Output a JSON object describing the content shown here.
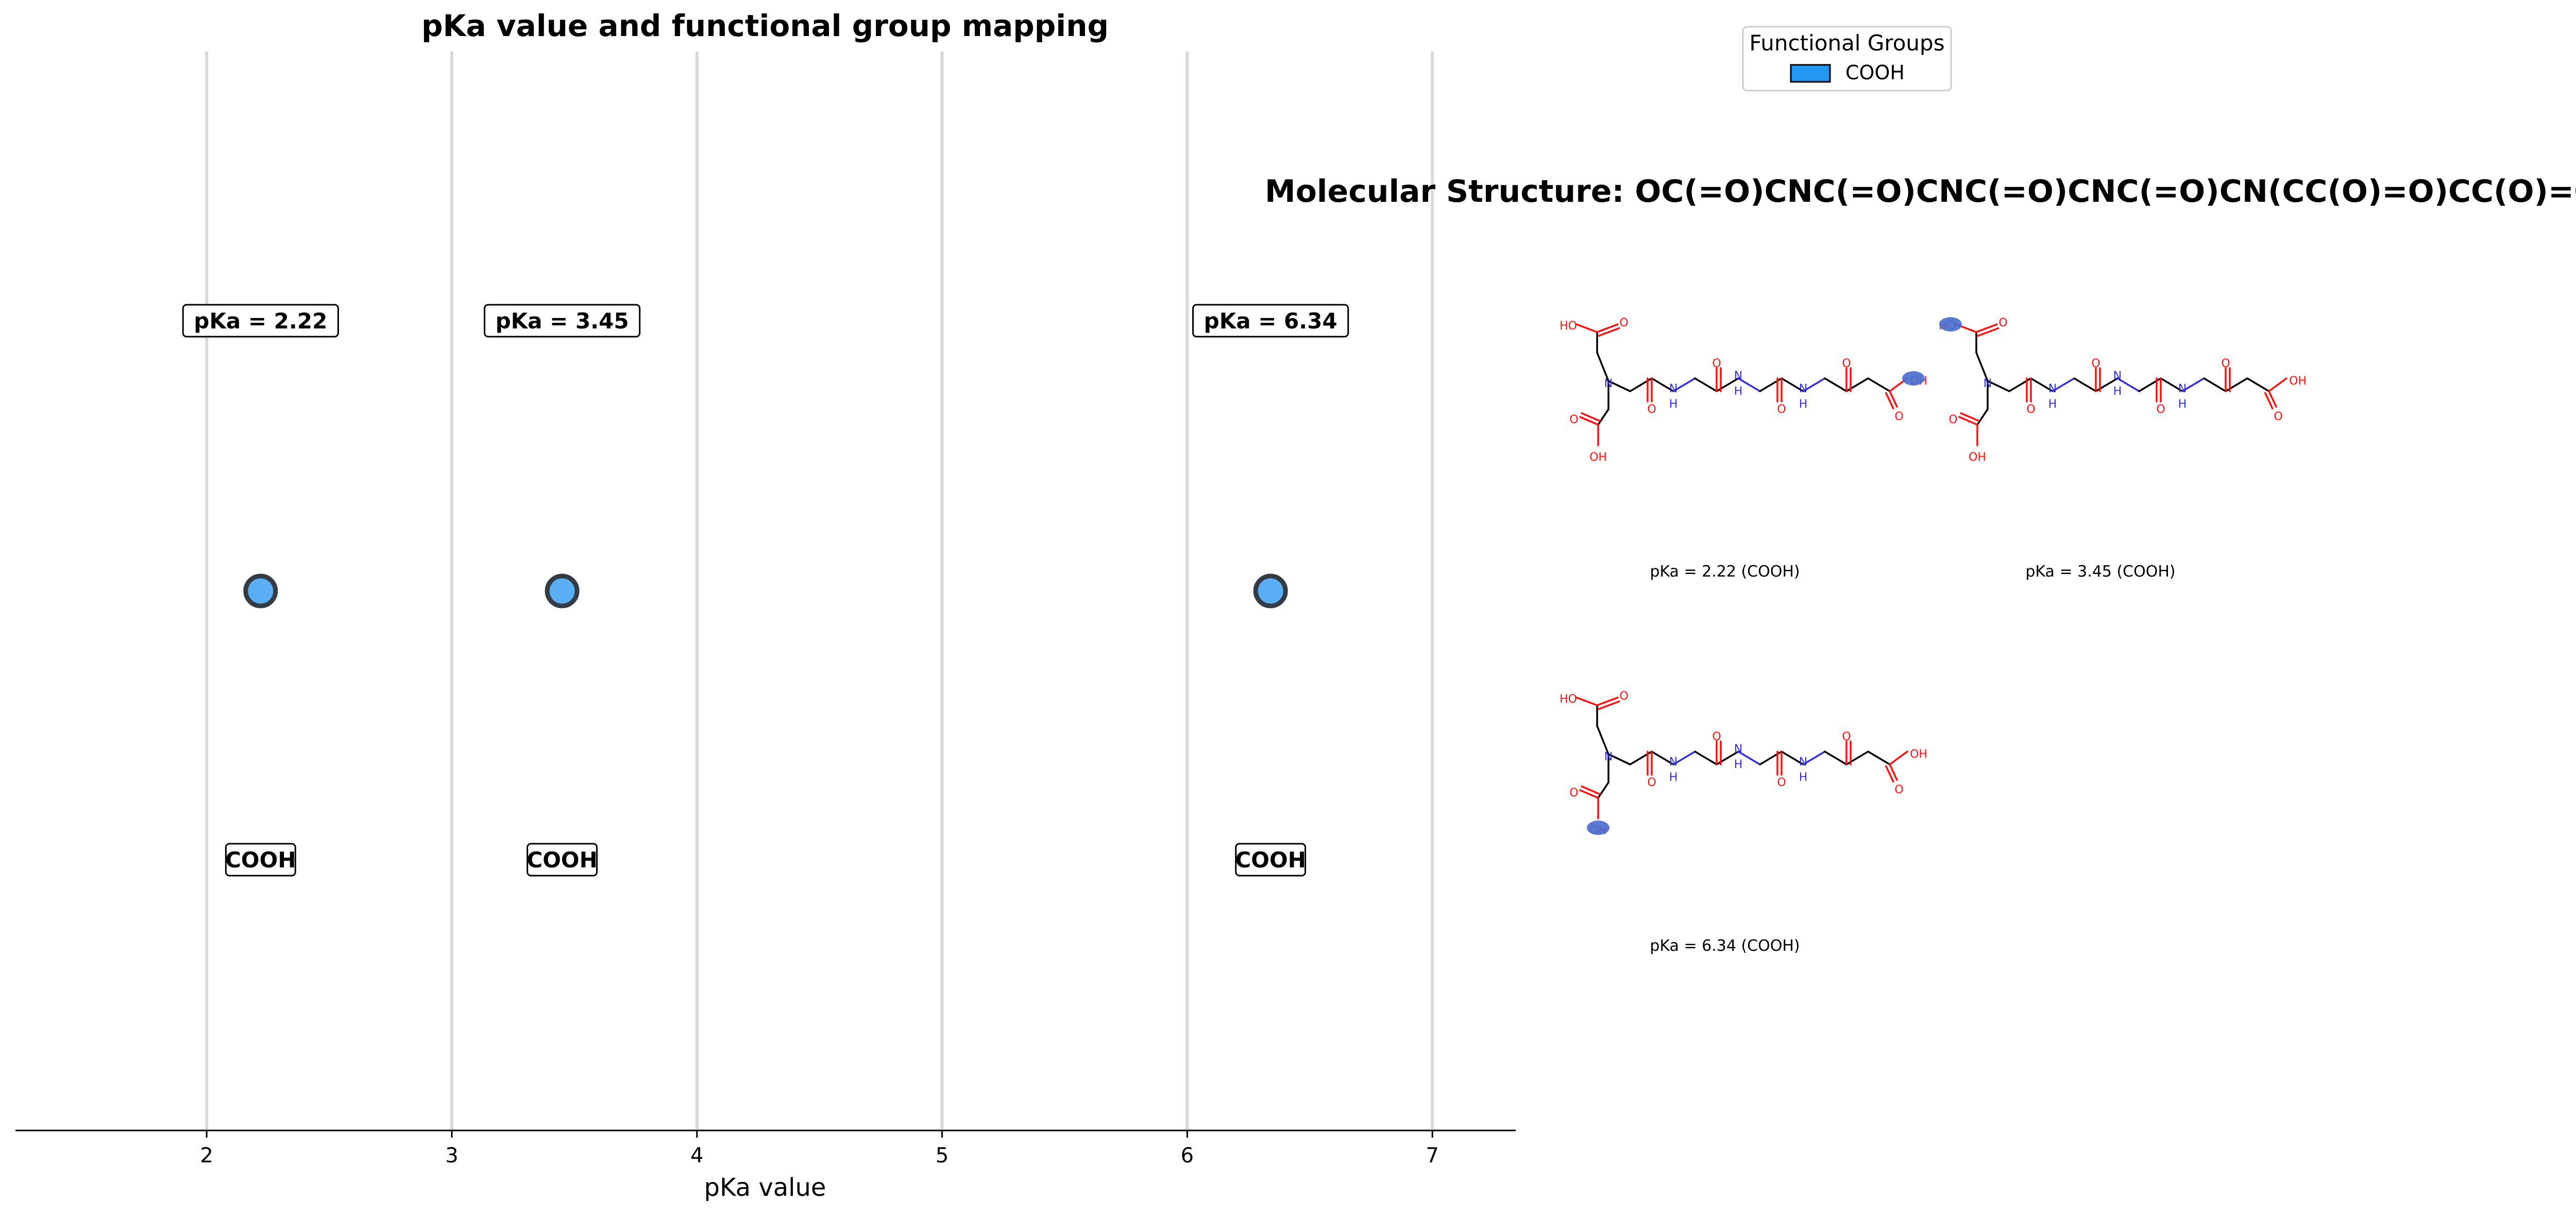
{
  "chart_data": {
    "type": "scatter",
    "title": "pKa value and functional group mapping",
    "xlabel": "pKa value",
    "ylabel": "",
    "xlim": [
      1.22,
      7.34
    ],
    "xticks": [
      2,
      3,
      4,
      5,
      6,
      7
    ],
    "grid": "vertical",
    "points": [
      {
        "x": 2.22,
        "group": "COOH",
        "label": "pKa = 2.22"
      },
      {
        "x": 3.45,
        "group": "COOH",
        "label": "pKa = 3.45"
      },
      {
        "x": 6.34,
        "group": "COOH",
        "label": "pKa = 6.34"
      }
    ],
    "legend": {
      "title": "Functional Groups",
      "placement": "top-center",
      "entries": [
        {
          "label": "COOH",
          "color": "#2196F3"
        }
      ]
    }
  },
  "structure_panel": {
    "title": "Molecular Structure: OC(=O)CNC(=O)CNC(=O)CNC(=O)CN(CC(O)=O)CC(O)=O",
    "captions": [
      "pKa = 2.22 (COOH)",
      "pKa = 3.45 (COOH)",
      "pKa = 6.34 (COOH)"
    ]
  },
  "colors": {
    "marker_fill": "#5AAEF4",
    "marker_edge": "#333B45",
    "legend_patch": "#2196F3",
    "highlight": "#4A6FD0",
    "oxygen": "#FF0D0D",
    "nitrogen": "#2F2FE0"
  }
}
